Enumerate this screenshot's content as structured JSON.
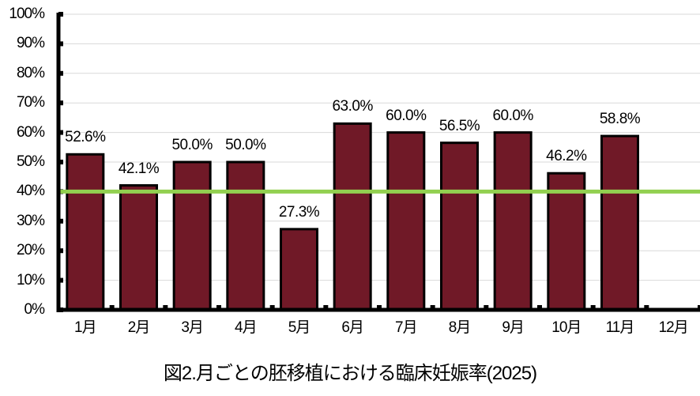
{
  "chart_data": {
    "type": "bar",
    "title": "図2.月ごとの胚移植における臨床妊娠率(2025)",
    "xlabel": "",
    "ylabel": "",
    "ylim": [
      0,
      100
    ],
    "yticks": [
      "0%",
      "10%",
      "20%",
      "30%",
      "40%",
      "50%",
      "60%",
      "70%",
      "80%",
      "90%",
      "100%"
    ],
    "categories": [
      "1月",
      "2月",
      "3月",
      "4月",
      "5月",
      "6月",
      "7月",
      "8月",
      "9月",
      "10月",
      "11月",
      "12月"
    ],
    "values": [
      52.6,
      42.1,
      50.0,
      50.0,
      27.3,
      63.0,
      60.0,
      56.5,
      60.0,
      46.2,
      58.8,
      null
    ],
    "data_labels": [
      "52.6%",
      "42.1%",
      "50.0%",
      "50.0%",
      "27.3%",
      "63.0%",
      "60.0%",
      "56.5%",
      "60.0%",
      "46.2%",
      "58.8%",
      ""
    ],
    "reference_line": {
      "value": 40,
      "color": "#92D050"
    },
    "bar_color": "#701927",
    "bar_edge_color": "#000000",
    "grid": true,
    "legend": null
  }
}
